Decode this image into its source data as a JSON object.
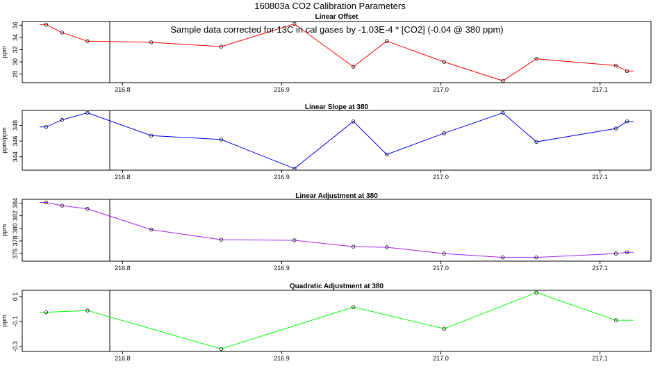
{
  "title": "160803a   CO2 Calibration Parameters",
  "annotation": "Sample data corrected for 13C in cal gases by -1.03E-4 * [CO2] (-0.04 @ 380 ppm)",
  "marker_x": 216.792,
  "chart_data": [
    {
      "type": "line",
      "title": "Linear Offset",
      "ylabel": "ppm",
      "color": "#ff0000",
      "xlim": [
        216.737,
        217.132
      ],
      "ylim": [
        26.6,
        36.6
      ],
      "xticks": [
        216.8,
        216.9,
        217.0,
        217.1
      ],
      "xtick_labels": [
        "216.8",
        "216.9",
        "217.0",
        "217.1"
      ],
      "yticks": [
        28,
        30,
        32,
        34,
        36
      ],
      "ytick_labels": [
        "28",
        "30",
        "32",
        "34",
        "36"
      ],
      "x": [
        216.752,
        216.762,
        216.778,
        216.818,
        216.862,
        216.908,
        216.945,
        216.966,
        217.002,
        217.039,
        217.06,
        217.11,
        217.117
      ],
      "y": [
        36.1,
        34.8,
        33.4,
        33.2,
        32.5,
        36.2,
        29.2,
        33.4,
        30.0,
        26.9,
        30.5,
        29.4,
        28.5
      ],
      "points_drawn": [
        true,
        true,
        true,
        true,
        true,
        true,
        true,
        true,
        true,
        true,
        true,
        true,
        true
      ],
      "extend_line_from": 216.748,
      "extend_line_to": 217.121
    },
    {
      "type": "line",
      "title": "Linear Slope at 380",
      "ylabel": "ppm/ppm",
      "color": "#0000ff",
      "xlim": [
        216.737,
        217.132
      ],
      "ylim": [
        342.3,
        349.9
      ],
      "xticks": [
        216.8,
        216.9,
        217.0,
        217.1
      ],
      "xtick_labels": [
        "216.8",
        "216.9",
        "217.0",
        "217.1"
      ],
      "yticks": [
        344,
        346,
        348
      ],
      "ytick_labels": [
        "344",
        "346",
        "348"
      ],
      "x": [
        216.752,
        216.762,
        216.778,
        216.818,
        216.862,
        216.908,
        216.945,
        216.966,
        217.002,
        217.039,
        217.06,
        217.11,
        217.117
      ],
      "y": [
        347.8,
        348.7,
        349.6,
        346.7,
        346.2,
        342.5,
        348.5,
        344.3,
        347.0,
        349.6,
        345.9,
        347.6,
        348.5
      ],
      "points_drawn": [
        true,
        true,
        true,
        true,
        true,
        true,
        true,
        true,
        true,
        true,
        true,
        true,
        true
      ],
      "extend_line_from": 216.748,
      "extend_line_to": 217.121
    },
    {
      "type": "line",
      "title": "Linear Adjustment at 380",
      "ylabel": "ppm",
      "color": "#a020f0",
      "xlim": [
        216.737,
        217.132
      ],
      "ylim": [
        374.8,
        384.6
      ],
      "xticks": [
        216.8,
        216.9,
        217.0,
        217.1
      ],
      "xtick_labels": [
        "216.8",
        "216.9",
        "217.0",
        "217.1"
      ],
      "yticks": [
        376,
        378,
        380,
        382,
        384
      ],
      "ytick_labels": [
        "376",
        "378",
        "380",
        "382",
        "384"
      ],
      "x": [
        216.752,
        216.762,
        216.778,
        216.818,
        216.862,
        216.908,
        216.945,
        216.966,
        217.002,
        217.039,
        217.06,
        217.11,
        217.117
      ],
      "y": [
        384.1,
        383.6,
        383.1,
        379.8,
        378.2,
        378.1,
        377.1,
        377.0,
        376.0,
        375.4,
        375.4,
        376.0,
        376.2
      ],
      "points_drawn": [
        true,
        true,
        true,
        true,
        true,
        true,
        true,
        true,
        true,
        true,
        true,
        true,
        true
      ],
      "extend_line_from": 216.748,
      "extend_line_to": 217.121
    },
    {
      "type": "line",
      "title": "Quadratic Adjustment at 380",
      "ylabel": "ppm",
      "color": "#00ff00",
      "xlim": [
        216.737,
        217.132
      ],
      "ylim": [
        -0.34,
        0.15
      ],
      "xticks": [
        216.8,
        216.9,
        217.0,
        217.1
      ],
      "xtick_labels": [
        "216.8",
        "216.9",
        "217.0",
        "217.1"
      ],
      "yticks": [
        -0.3,
        -0.1,
        0.1
      ],
      "ytick_labels": [
        "-0.3",
        "-0.1",
        "0.1"
      ],
      "x": [
        216.752,
        216.778,
        216.862,
        216.945,
        217.002,
        217.06,
        217.11
      ],
      "y": [
        -0.026,
        -0.012,
        -0.32,
        0.015,
        -0.158,
        0.132,
        -0.09
      ],
      "points_drawn": [
        true,
        true,
        true,
        true,
        true,
        true,
        true
      ],
      "extend_line_from": 216.748,
      "extend_line_to": 217.121
    }
  ]
}
